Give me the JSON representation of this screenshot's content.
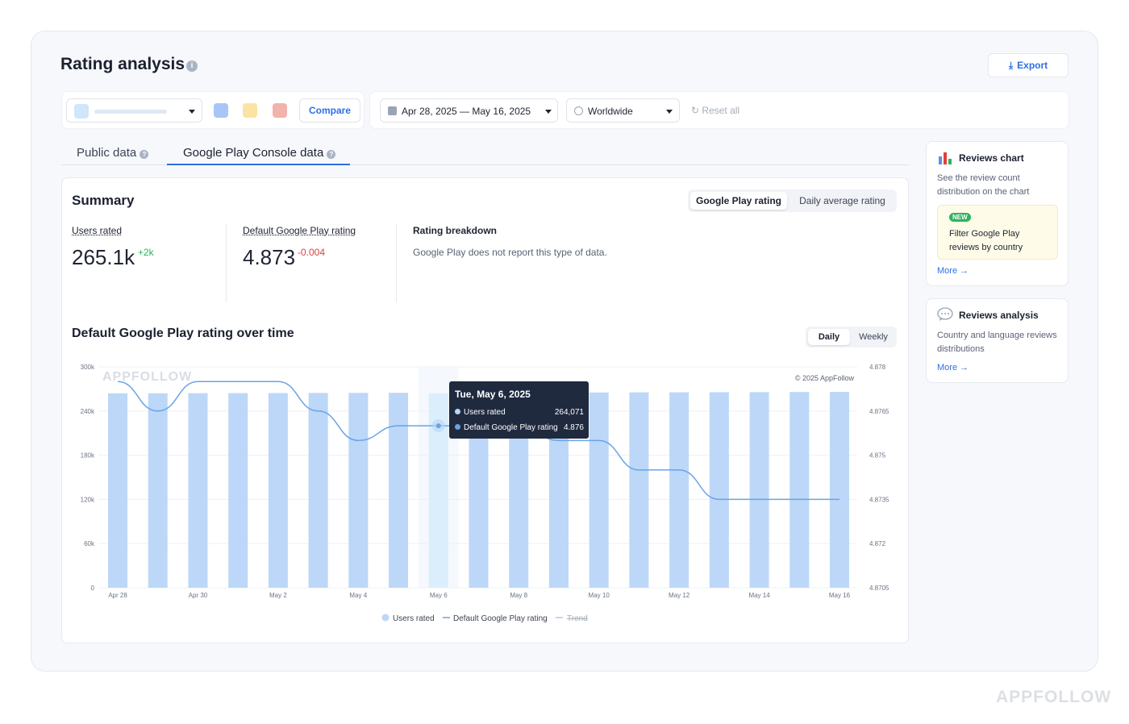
{
  "header": {
    "title": "Rating analysis",
    "export_label": "Export"
  },
  "filters": {
    "compare_label": "Compare",
    "date_range": "Apr 28, 2025 — May 16, 2025",
    "region": "Worldwide",
    "reset_label": "Reset all",
    "compare_colors": [
      "#a9c4f7",
      "#fbe3a3",
      "#f2b3ad"
    ]
  },
  "tabs": [
    {
      "label": "Public data",
      "active": false
    },
    {
      "label": "Google Play Console data",
      "active": true
    }
  ],
  "summary": {
    "title": "Summary",
    "toggle": [
      "Google Play rating",
      "Daily average rating"
    ],
    "users_rated": {
      "label": "Users rated",
      "value": "265.1k",
      "delta": "+2k"
    },
    "default_rating": {
      "label": "Default Google Play rating",
      "value": "4.873",
      "delta": "-0.004"
    },
    "breakdown": {
      "label": "Rating breakdown",
      "text": "Google Play does not report this type of data."
    }
  },
  "chart_section": {
    "title": "Default Google Play rating over time",
    "granularity": [
      "Daily",
      "Weekly"
    ],
    "watermark": "APPFOLLOW",
    "copyright": "© 2025 AppFollow",
    "tooltip": {
      "title": "Tue, May 6, 2025",
      "rows": [
        {
          "label": "Users rated",
          "value": "264,071"
        },
        {
          "label": "Default Google Play rating",
          "value": "4.876"
        }
      ]
    }
  },
  "chart_data": {
    "type": "bar",
    "categories": [
      "Apr 28",
      "Apr 29",
      "Apr 30",
      "May 1",
      "May 2",
      "May 3",
      "May 4",
      "May 5",
      "May 6",
      "May 7",
      "May 8",
      "May 9",
      "May 10",
      "May 11",
      "May 12",
      "May 13",
      "May 14",
      "May 15",
      "May 16"
    ],
    "x_tick_labels": [
      "Apr 28",
      "Apr 30",
      "May 2",
      "May 4",
      "May 6",
      "May 8",
      "May 10",
      "May 12",
      "May 14",
      "May 16"
    ],
    "series": [
      {
        "name": "Users rated",
        "type": "bar",
        "axis": "left",
        "values": [
          264000,
          264100,
          264200,
          264300,
          264400,
          264500,
          264600,
          264700,
          264071,
          264900,
          265000,
          265100,
          265200,
          265300,
          265400,
          265500,
          265600,
          265800,
          265900
        ]
      },
      {
        "name": "Default Google Play rating",
        "type": "line",
        "axis": "right",
        "values": [
          4.8775,
          4.8765,
          4.8775,
          4.8775,
          4.8775,
          4.8765,
          4.8755,
          4.876,
          4.876,
          4.876,
          4.876,
          4.8755,
          4.8755,
          4.8745,
          4.8745,
          4.8735,
          4.8735,
          4.8735,
          4.8735
        ]
      }
    ],
    "left_axis": {
      "ylim": [
        0,
        300000
      ],
      "ticks": [
        "0",
        "60k",
        "120k",
        "180k",
        "240k",
        "300k"
      ]
    },
    "right_axis": {
      "ylim": [
        4.8705,
        4.878
      ],
      "ticks": [
        "4.8705",
        "4.872",
        "4.8735",
        "4.875",
        "4.8765",
        "4.878"
      ]
    },
    "highlighted_index": 8,
    "legend": [
      "Users rated",
      "Default Google Play rating",
      "Trend"
    ],
    "legend_position": "bottom",
    "colors": {
      "bar": "#bcd7f8",
      "bar_highlight": "#dbeefc",
      "line": "#6aa3e6"
    }
  },
  "sidebar": {
    "reviews_chart": {
      "title": "Reviews chart",
      "desc": "See the review count distribution on the chart",
      "badge": "NEW",
      "promo": "Filter Google Play reviews by country",
      "more": "More →"
    },
    "reviews_analysis": {
      "title": "Reviews analysis",
      "desc": "Country and language reviews distributions",
      "more": "More →"
    }
  },
  "footer_brand": "APPFOLLOW"
}
